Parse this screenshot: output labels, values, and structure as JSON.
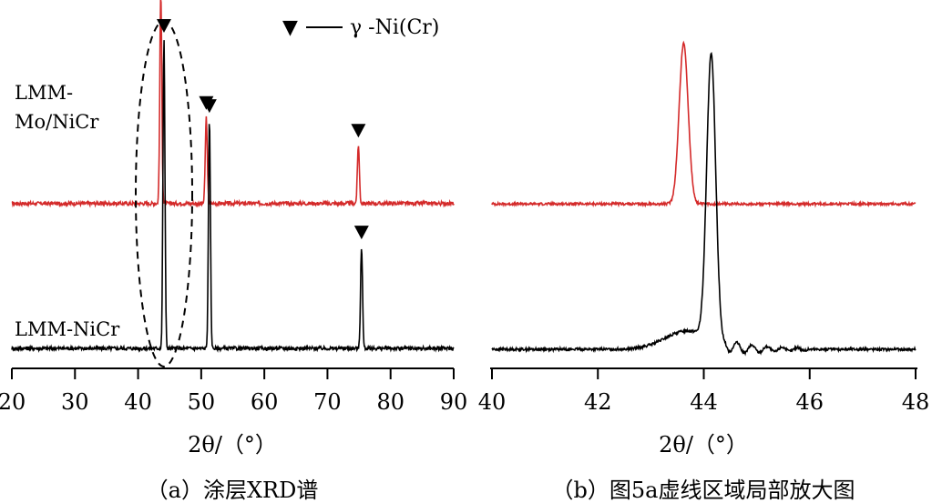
{
  "chart_data": [
    {
      "type": "line",
      "panel_label": "（a）涂层XRD谱",
      "xlabel": "2θ/（°）",
      "xlim": [
        20,
        90
      ],
      "x_ticks": [
        20,
        30,
        40,
        50,
        60,
        70,
        80,
        90
      ],
      "y_ticks_shown": false,
      "legend": {
        "marker": "▼",
        "label": "γ -Ni(Cr)",
        "position": "top"
      },
      "annotation": "dashed ellipse around the 43–45° peak region",
      "series": [
        {
          "name": "LMM-Mo/NiCr",
          "color": "#d42a2a",
          "baseline": 0.47,
          "peaks": [
            {
              "x": 43.6,
              "height": 0.68,
              "marker": true
            },
            {
              "x": 50.8,
              "height": 0.28,
              "marker": true
            },
            {
              "x": 74.9,
              "height": 0.19,
              "marker": true
            }
          ]
        },
        {
          "name": "LMM-NiCr",
          "color": "#000000",
          "baseline": 0.0,
          "peaks": [
            {
              "x": 44.1,
              "height": 1.0,
              "marker": true
            },
            {
              "x": 51.3,
              "height": 0.74,
              "marker": true
            },
            {
              "x": 75.4,
              "height": 0.33,
              "marker": true
            }
          ]
        }
      ]
    },
    {
      "type": "line",
      "panel_label": "（b）图5a虚线区域局部放大图",
      "xlabel": "2θ/（°）",
      "xlim": [
        40,
        48
      ],
      "x_ticks": [
        40,
        42,
        44,
        46,
        48
      ],
      "y_ticks_shown": false,
      "series": [
        {
          "color": "#d42a2a",
          "baseline": 0.47,
          "peaks": [
            {
              "x": 43.62,
              "height": 0.52
            }
          ]
        },
        {
          "color": "#000000",
          "baseline": 0.0,
          "peaks": [
            {
              "x": 44.14,
              "height": 0.92
            }
          ]
        }
      ]
    }
  ]
}
